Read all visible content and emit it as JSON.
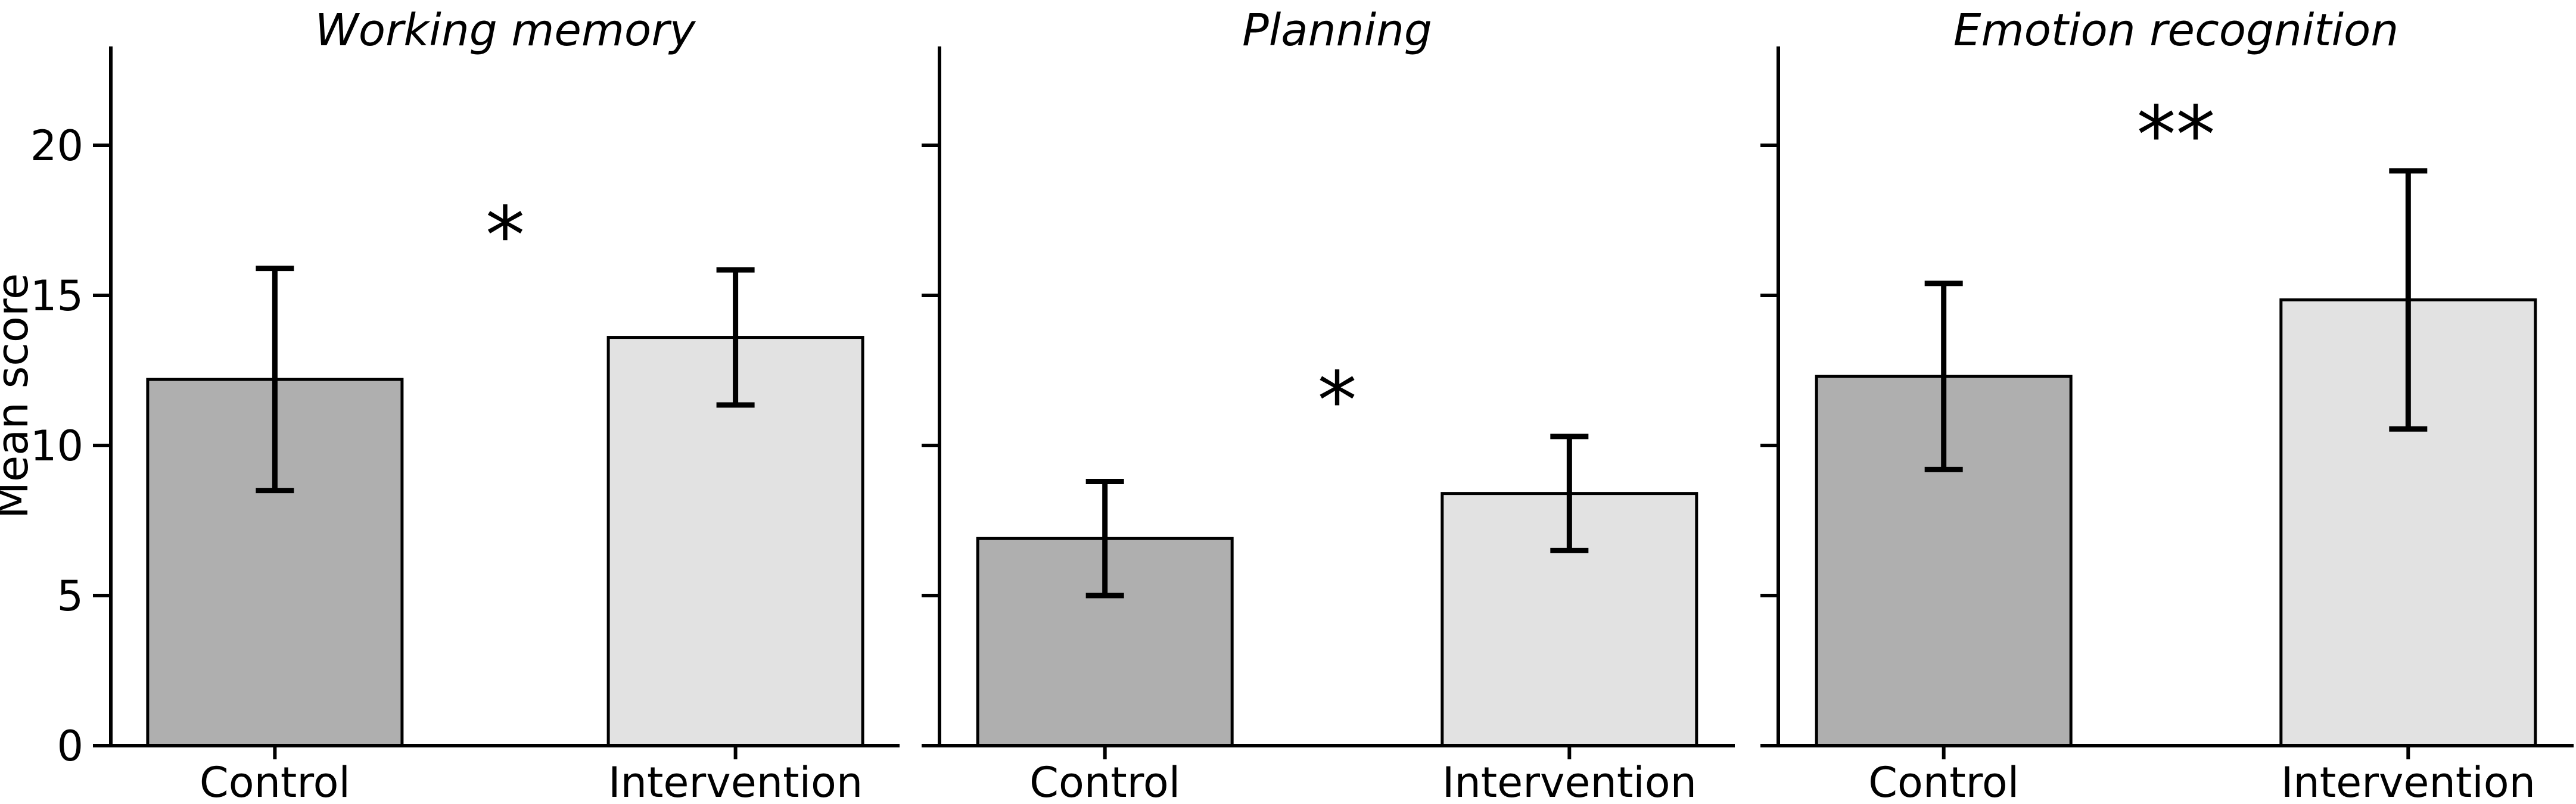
{
  "figure": {
    "ylabel": "Mean score",
    "yticks": [
      0,
      5,
      10,
      15,
      20
    ],
    "ylim": [
      0,
      23.3
    ],
    "categories": [
      "Control",
      "Intervention"
    ],
    "colors": {
      "control_fill": "#afafaf",
      "intervention_fill": "#e2e2e2",
      "edge": "#000000",
      "background": "#ffffff"
    }
  },
  "chart_data": [
    {
      "type": "bar",
      "title": "Working memory",
      "categories": [
        "Control",
        "Intervention"
      ],
      "values": [
        12.2,
        13.6
      ],
      "errors": [
        3.7,
        2.25
      ],
      "significance": {
        "label": "*",
        "y": 17.4
      },
      "xlabel": "",
      "ylabel": "Mean score",
      "ylim": [
        0,
        23.3
      ],
      "grid": false,
      "legend": "none"
    },
    {
      "type": "bar",
      "title": "Planning",
      "categories": [
        "Control",
        "Intervention"
      ],
      "values": [
        6.9,
        8.4
      ],
      "errors": [
        1.9,
        1.9
      ],
      "significance": {
        "label": "*",
        "y": 11.9
      },
      "xlabel": "",
      "ylabel": "",
      "ylim": [
        0,
        23.3
      ],
      "grid": false,
      "legend": "none"
    },
    {
      "type": "bar",
      "title": "Emotion recognition",
      "categories": [
        "Control",
        "Intervention"
      ],
      "values": [
        12.3,
        14.85
      ],
      "errors": [
        3.1,
        4.3
      ],
      "significance": {
        "label": "**",
        "y": 20.75
      },
      "xlabel": "",
      "ylabel": "",
      "ylim": [
        0,
        23.3
      ],
      "grid": false,
      "legend": "none"
    }
  ]
}
